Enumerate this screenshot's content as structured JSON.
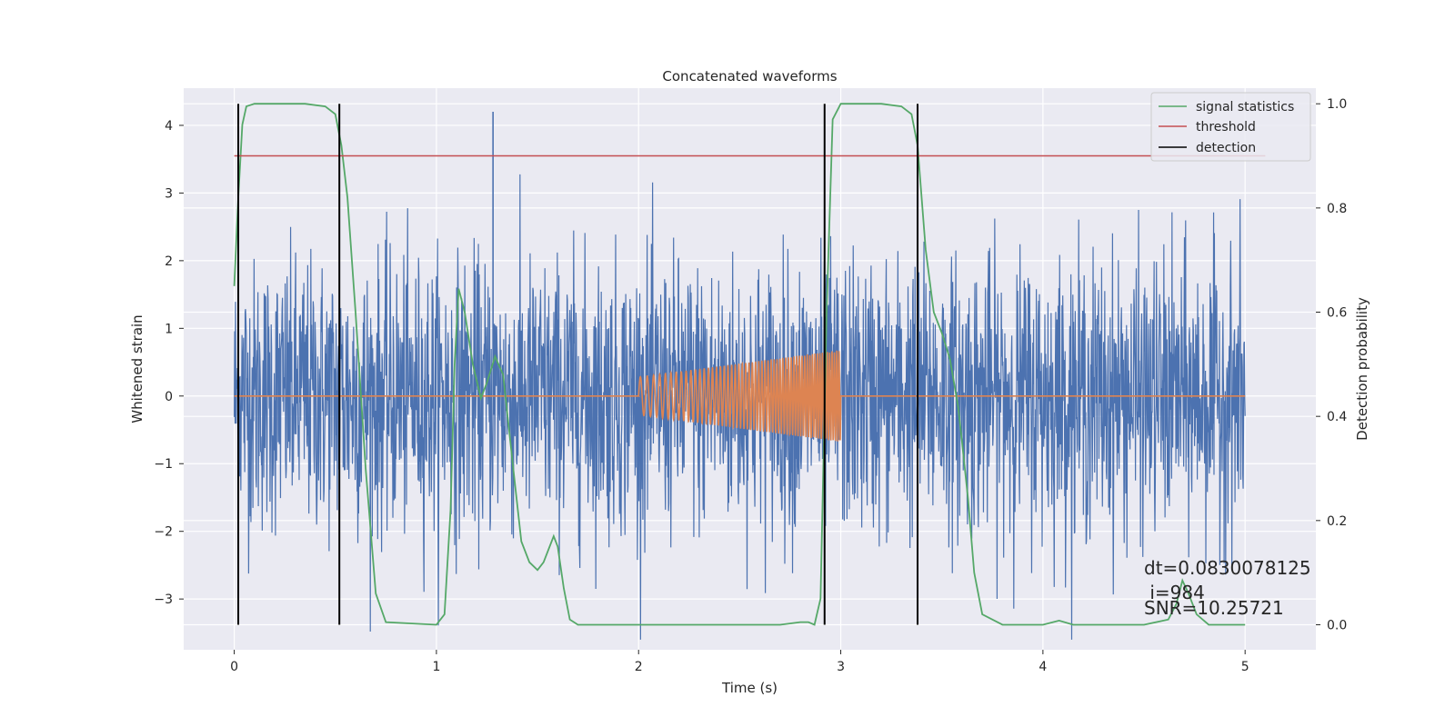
{
  "chart_data": {
    "type": "line",
    "title": "Concatenated waveforms",
    "xlabel": "Time (s)",
    "ylabel": "Whitened strain",
    "ylabel_right": "Detection probability",
    "xlim": [
      -0.25,
      5.35
    ],
    "ylim": [
      -3.75,
      4.55
    ],
    "ylim_right": [
      -0.048,
      1.03
    ],
    "x_ticks": [
      0,
      1,
      2,
      3,
      4,
      5
    ],
    "y_ticks": [
      -3,
      -2,
      -1,
      0,
      1,
      2,
      3,
      4
    ],
    "y_ticks_right": [
      0.0,
      0.2,
      0.4,
      0.6,
      0.8,
      1.0
    ],
    "grid": true,
    "legend_position": "top-right",
    "colors": {
      "background": "#eaeaf2",
      "grid": "#ffffff",
      "strain": "#4c72b0",
      "template": "#dd8452",
      "signal": "#55a868",
      "threshold": "#c44e52",
      "detection": "#000000"
    },
    "series": [
      {
        "name": "",
        "axis": "left",
        "kind": "noise",
        "x_range": [
          0,
          5
        ],
        "envelope_sigma": 1.0,
        "peak": 4.2,
        "color": "#4c72b0"
      },
      {
        "name": "",
        "axis": "left",
        "kind": "chirp",
        "baseline_x": [
          0,
          5
        ],
        "baseline_y": 0,
        "chirp_x": [
          2.0,
          3.0
        ],
        "amplitude": [
          0.28,
          0.68
        ],
        "color": "#dd8452"
      },
      {
        "name": "signal statistics",
        "axis": "right",
        "kind": "line",
        "x": [
          0.0,
          0.02,
          0.04,
          0.06,
          0.1,
          0.2,
          0.35,
          0.45,
          0.5,
          0.53,
          0.56,
          0.6,
          0.65,
          0.7,
          0.75,
          1.0,
          1.04,
          1.07,
          1.09,
          1.11,
          1.14,
          1.18,
          1.22,
          1.25,
          1.29,
          1.33,
          1.38,
          1.42,
          1.46,
          1.5,
          1.53,
          1.56,
          1.58,
          1.6,
          1.63,
          1.66,
          1.7,
          2.0,
          2.5,
          2.7,
          2.8,
          2.84,
          2.87,
          2.9,
          2.93,
          2.96,
          3.0,
          3.2,
          3.3,
          3.35,
          3.38,
          3.42,
          3.46,
          3.5,
          3.54,
          3.58,
          3.6,
          3.63,
          3.66,
          3.7,
          3.8,
          4.0,
          4.08,
          4.15,
          4.5,
          4.62,
          4.66,
          4.69,
          4.72,
          4.76,
          4.82,
          5.0
        ],
        "y": [
          0.65,
          0.82,
          0.96,
          0.995,
          1.0,
          1.0,
          1.0,
          0.995,
          0.98,
          0.92,
          0.82,
          0.6,
          0.3,
          0.06,
          0.005,
          0.0,
          0.02,
          0.22,
          0.5,
          0.645,
          0.6,
          0.5,
          0.435,
          0.465,
          0.515,
          0.48,
          0.3,
          0.16,
          0.12,
          0.105,
          0.12,
          0.15,
          0.17,
          0.15,
          0.07,
          0.01,
          0.0,
          0.0,
          0.0,
          0.0,
          0.005,
          0.005,
          0.0,
          0.05,
          0.6,
          0.97,
          1.0,
          1.0,
          0.995,
          0.98,
          0.92,
          0.72,
          0.6,
          0.56,
          0.51,
          0.42,
          0.35,
          0.24,
          0.1,
          0.02,
          0.0,
          0.0,
          0.008,
          0.0,
          0.0,
          0.01,
          0.04,
          0.085,
          0.06,
          0.02,
          0.0,
          0.0
        ],
        "color": "#55a868"
      },
      {
        "name": "threshold",
        "axis": "right",
        "kind": "hline",
        "x": [
          0.0,
          5.1
        ],
        "y": 0.9,
        "color": "#c44e52"
      },
      {
        "name": "detection",
        "axis": "right",
        "kind": "vlines",
        "x": [
          0.02,
          0.52,
          2.92,
          3.38
        ],
        "y_range": [
          0.0,
          1.0
        ],
        "color": "#000000"
      }
    ],
    "annotations": {
      "dt": "dt=0.0830078125",
      "i": " i=984",
      "snr": "SNR=10.25721"
    }
  }
}
